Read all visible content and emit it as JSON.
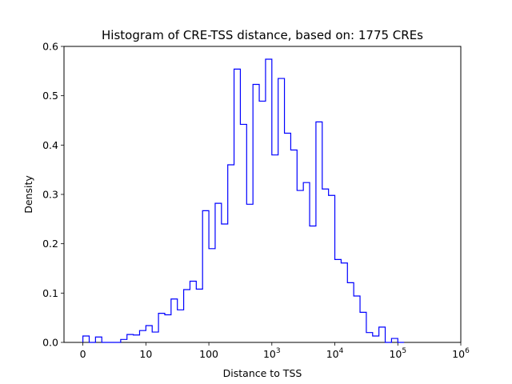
{
  "chart_data": {
    "type": "histogram",
    "title": "Histogram of CRE-TSS distance, based on: 1775 CREs",
    "xlabel": "Distance to TSS",
    "ylabel": "Density",
    "xscale": "symlog-style",
    "xlim": [
      -0.3,
      6.0
    ],
    "ylim": [
      0,
      0.6
    ],
    "grid": false,
    "legend": "none",
    "color": "#0000ff",
    "xticks": [
      {
        "pos": 0,
        "base": "0",
        "exp": ""
      },
      {
        "pos": 1,
        "base": "10",
        "exp": ""
      },
      {
        "pos": 2,
        "base": "100",
        "exp": ""
      },
      {
        "pos": 3,
        "base": "10",
        "exp": "3"
      },
      {
        "pos": 4,
        "base": "10",
        "exp": "4"
      },
      {
        "pos": 5,
        "base": "10",
        "exp": "5"
      },
      {
        "pos": 6,
        "base": "10",
        "exp": "6"
      }
    ],
    "yticks": [
      "0.0",
      "0.1",
      "0.2",
      "0.3",
      "0.4",
      "0.5",
      "0.6"
    ],
    "bin_width": 0.1,
    "bin_start": 0.0,
    "density": [
      0.013,
      0.0,
      0.011,
      0.0,
      0.0,
      0.0,
      0.006,
      0.016,
      0.015,
      0.024,
      0.034,
      0.021,
      0.059,
      0.056,
      0.088,
      0.066,
      0.107,
      0.124,
      0.108,
      0.267,
      0.19,
      0.282,
      0.24,
      0.36,
      0.554,
      0.442,
      0.28,
      0.523,
      0.489,
      0.574,
      0.38,
      0.535,
      0.424,
      0.39,
      0.308,
      0.324,
      0.236,
      0.447,
      0.311,
      0.298,
      0.168,
      0.161,
      0.121,
      0.094,
      0.061,
      0.02,
      0.013,
      0.031,
      0.0,
      0.008,
      0.0
    ]
  }
}
